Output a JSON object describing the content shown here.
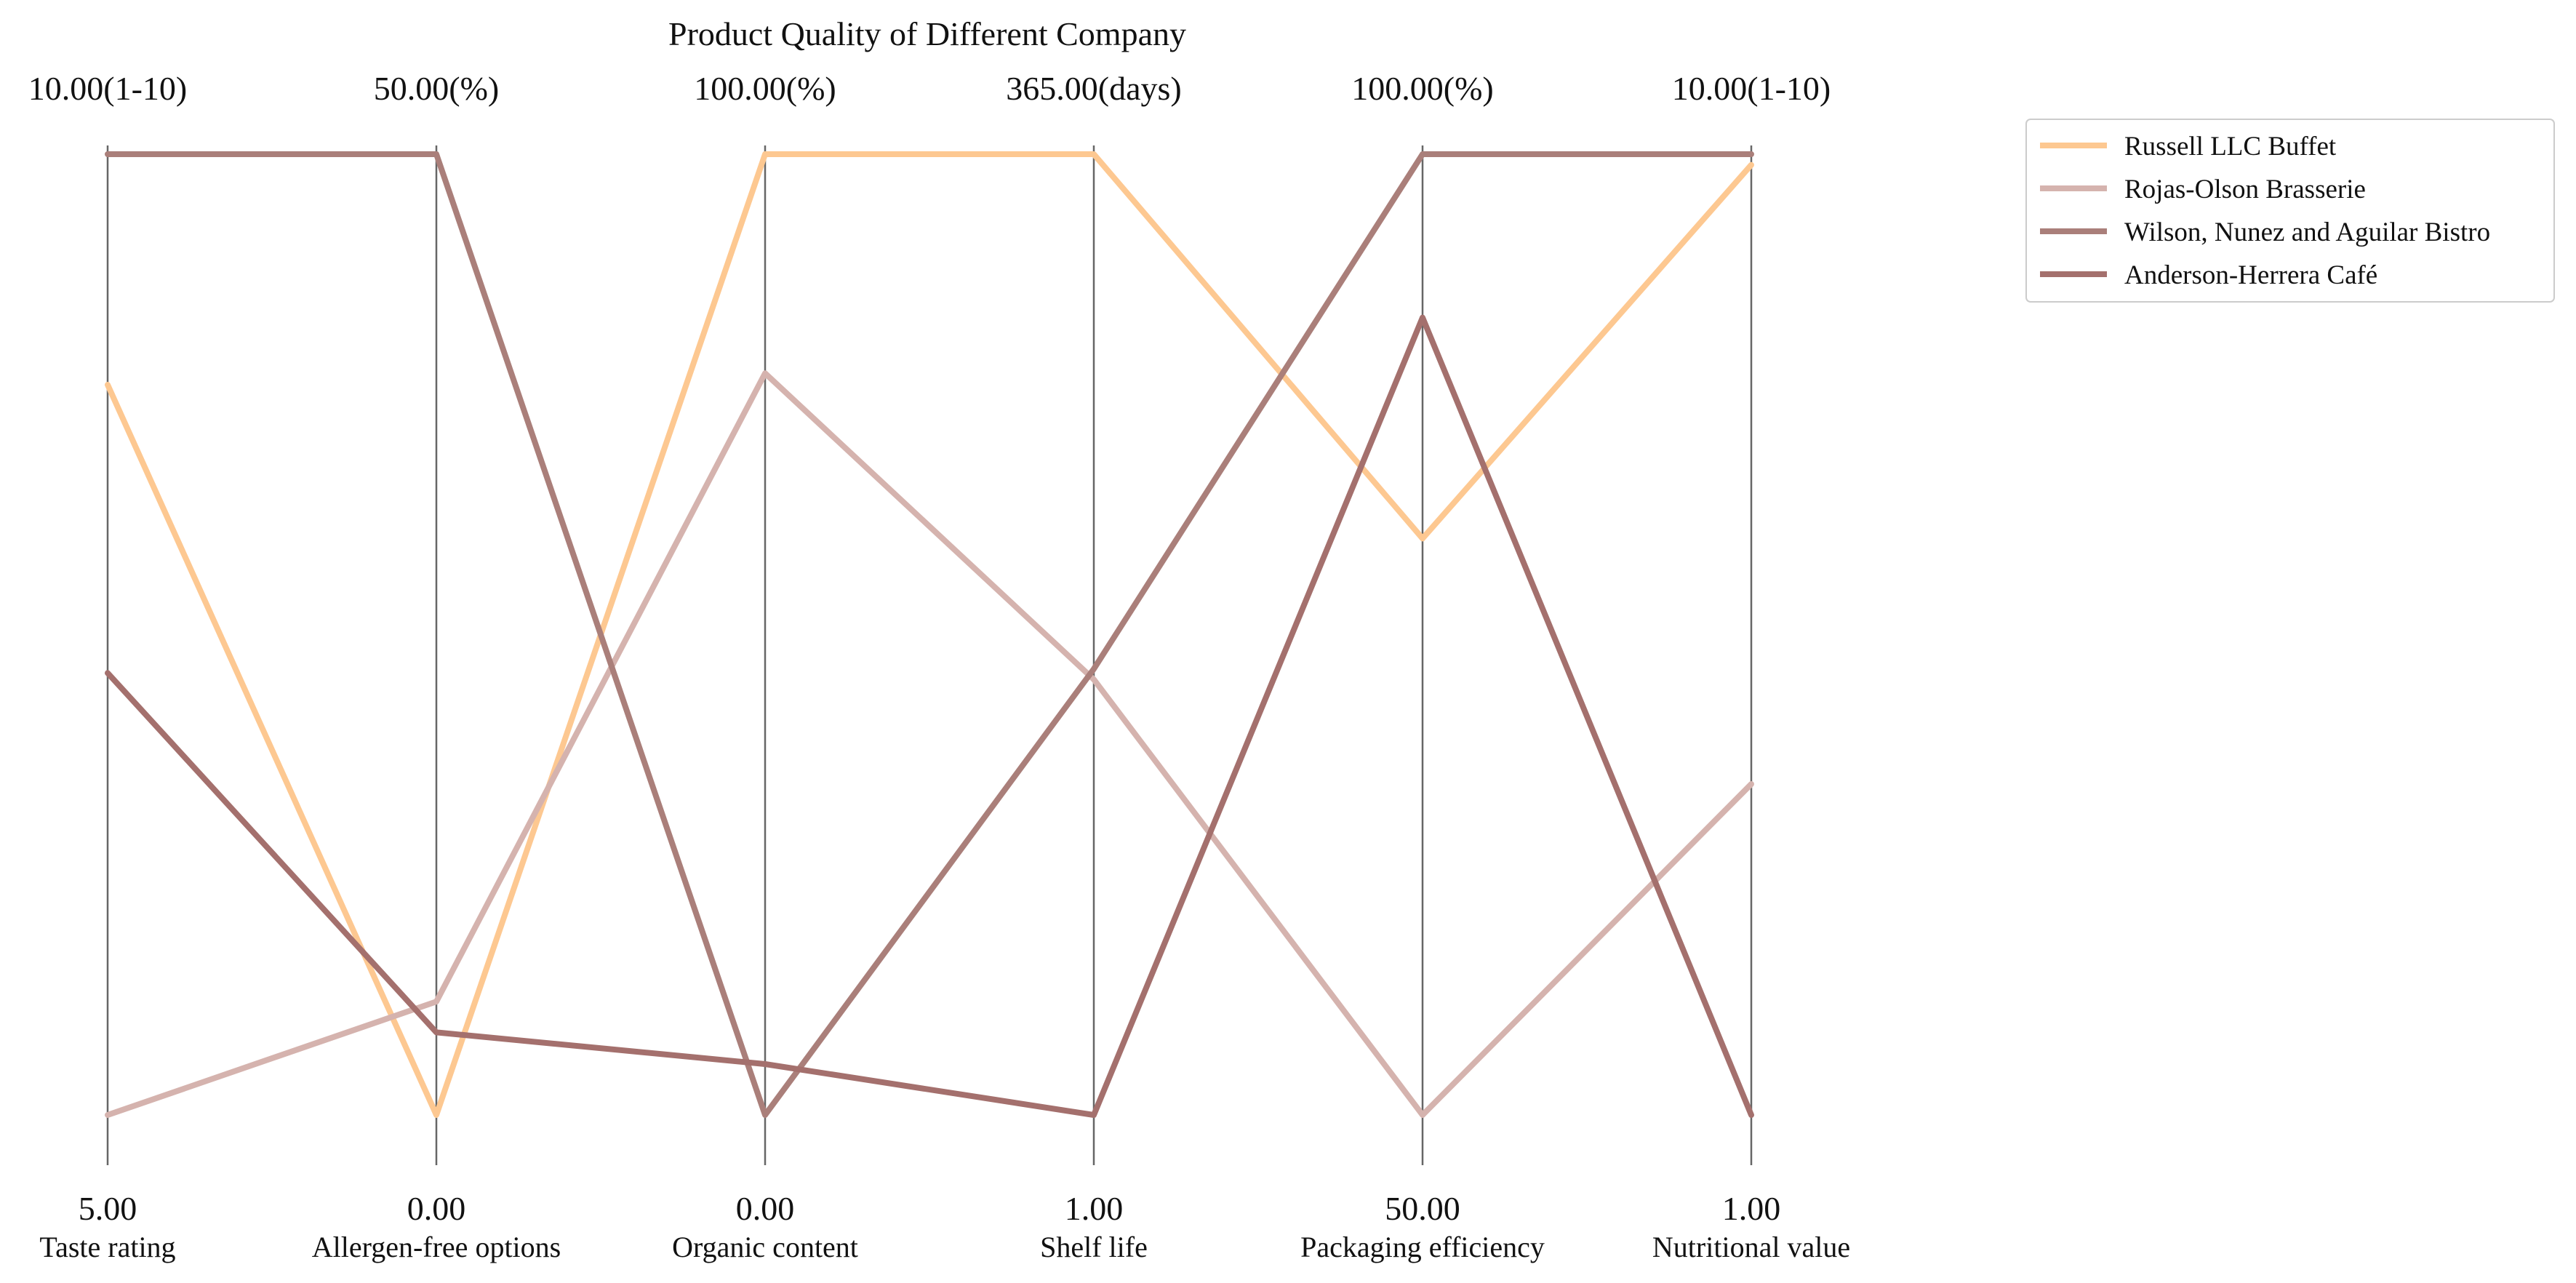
{
  "chart_data": {
    "type": "parallel_coordinates",
    "title": "Product Quality of Different Company",
    "axes": [
      {
        "label": "Taste rating",
        "min": 5.0,
        "max": 10.0,
        "min_label": "5.00",
        "max_label": "10.00(1-10)"
      },
      {
        "label": "Allergen-free options",
        "min": 0.0,
        "max": 50.0,
        "min_label": "0.00",
        "max_label": "50.00(%)"
      },
      {
        "label": "Organic content",
        "min": 0.0,
        "max": 100.0,
        "min_label": "0.00",
        "max_label": "100.00(%)"
      },
      {
        "label": "Shelf life",
        "min": 1.0,
        "max": 365.0,
        "min_label": "1.00",
        "max_label": "365.00(days)"
      },
      {
        "label": "Packaging efficiency",
        "min": 50.0,
        "max": 100.0,
        "min_label": "50.00",
        "max_label": "100.00(%)"
      },
      {
        "label": "Nutritional value",
        "min": 1.0,
        "max": 10.0,
        "min_label": "1.00",
        "max_label": "10.00(1-10)"
      }
    ],
    "series": [
      {
        "name": "Russell LLC  Buffet",
        "color": "#fdc891",
        "values": [
          8.8,
          0.0,
          100.0,
          365.0,
          80.0,
          9.9
        ]
      },
      {
        "name": "Rojas-Olson  Brasserie",
        "color": "#d5b3ae",
        "values": [
          5.0,
          5.9,
          77.2,
          166.0,
          50.0,
          4.1
        ]
      },
      {
        "name": "Wilson, Nunez and Aguilar  Bistro",
        "color": "#aa7f7a",
        "values": [
          10.0,
          50.0,
          0.0,
          170.0,
          100.0,
          10.0
        ]
      },
      {
        "name": "Anderson-Herrera  Café",
        "color": "#a4706d",
        "values": [
          7.3,
          4.3,
          5.3,
          1.0,
          91.5,
          1.0
        ]
      }
    ],
    "legend_position": "top-right",
    "grid": false
  }
}
